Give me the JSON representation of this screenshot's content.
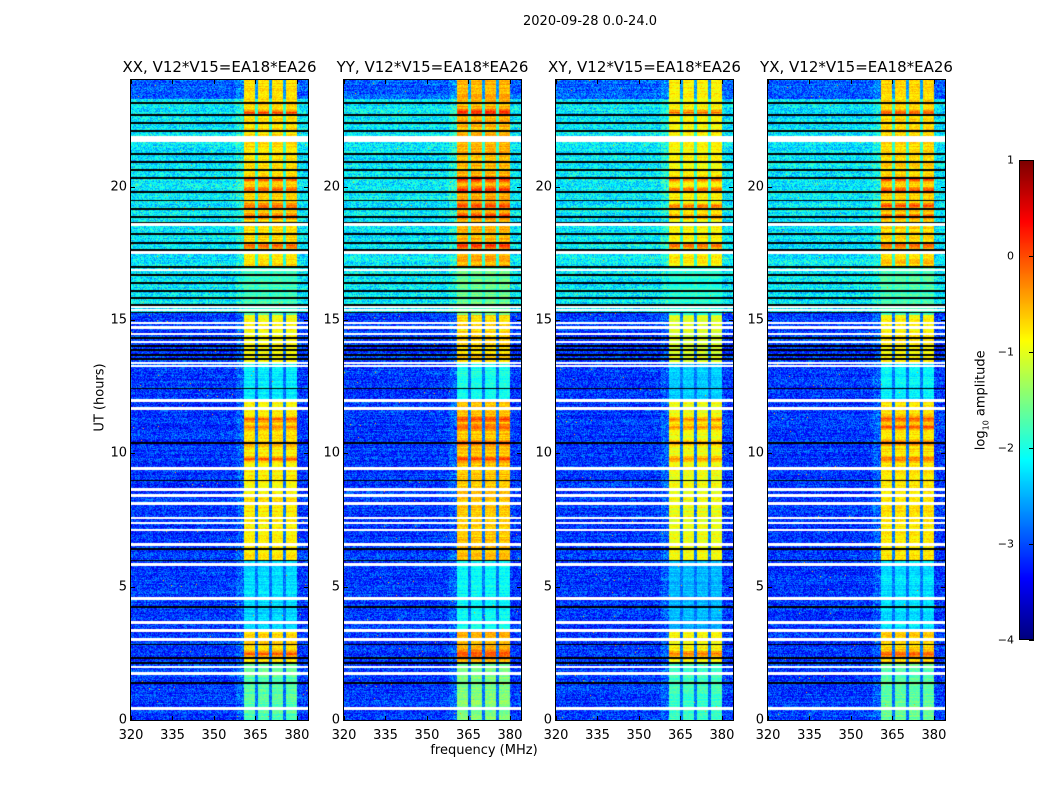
{
  "chart_data": {
    "type": "heatmap",
    "title": "2020-09-28 0.0-24.0",
    "xlabel": "frequency (MHz)",
    "ylabel": "UT (hours)",
    "xlim": [
      320,
      384
    ],
    "ylim": [
      0,
      24
    ],
    "xticks": [
      "320",
      "335",
      "350",
      "365",
      "380"
    ],
    "xtick_values": [
      320,
      335,
      350,
      365,
      380
    ],
    "yticks": [
      "0",
      "5",
      "10",
      "15",
      "20"
    ],
    "ytick_values": [
      0,
      5,
      10,
      15,
      20
    ],
    "panels": [
      {
        "title": "XX, V12*V15=EA18*EA26",
        "band_boost": 0.0
      },
      {
        "title": "YY, V12*V15=EA18*EA26",
        "band_boost": 0.2
      },
      {
        "title": "XY, V12*V15=EA18*EA26",
        "band_boost": -0.15
      },
      {
        "title": "YX, V12*V15=EA18*EA26",
        "band_boost": 0.05
      }
    ],
    "colorbar": {
      "label_prefix": "log",
      "label_sub": "10",
      "label_suffix": " amplitude",
      "range": [
        -4,
        1
      ],
      "ticks": [
        "1",
        "0",
        "−1",
        "−2",
        "−3",
        "−4"
      ],
      "tick_values": [
        1,
        0,
        -1,
        -2,
        -3,
        -4
      ],
      "colormap": "jet"
    },
    "rfi_band_mhz": [
      360.5,
      380
    ],
    "band_gaps_mhz": [
      365.2,
      370.3,
      375.3
    ],
    "background_levels": [
      {
        "from": 0,
        "to": 15.3,
        "level": -3.1
      },
      {
        "from": 15.3,
        "to": 23.3,
        "level": -2.2
      },
      {
        "from": 23.3,
        "to": 24,
        "level": -2.9
      }
    ],
    "band_levels": [
      {
        "from": 0,
        "to": 2.1,
        "level": -1.7
      },
      {
        "from": 2.1,
        "to": 3.3,
        "level": -0.7
      },
      {
        "from": 3.3,
        "to": 6.0,
        "level": -2.3
      },
      {
        "from": 6.0,
        "to": 12.0,
        "level": -0.8
      },
      {
        "from": 12.0,
        "to": 13.4,
        "level": -2.2
      },
      {
        "from": 13.4,
        "to": 15.2,
        "level": -0.9
      },
      {
        "from": 15.2,
        "to": 17.0,
        "level": -1.8
      },
      {
        "from": 17.0,
        "to": 24,
        "level": -0.7
      }
    ],
    "hot_times": [
      2.5,
      9.8,
      10.4,
      11.0,
      11.3,
      17.8,
      18.9,
      19.3,
      19.9,
      20.3,
      22.8
    ],
    "flagged_times_white": [
      0.45,
      1.76,
      2.0,
      3.04,
      3.37,
      3.67,
      4.57,
      5.85,
      6.6,
      7.15,
      7.4,
      7.6,
      8.14,
      8.44,
      8.66,
      9.45,
      11.7,
      12.0,
      13.3,
      13.4,
      14.2,
      14.5,
      14.74,
      14.9,
      15.4,
      15.5,
      16.9,
      17.55,
      18.6,
      21.75,
      21.86
    ],
    "zero_times_black": [
      1.39,
      2.14,
      2.36,
      2.85,
      4.24,
      6.0,
      6.45,
      9.0,
      10.42,
      12.45,
      13.55,
      13.7,
      13.9,
      14.05,
      14.35,
      15.3,
      15.6,
      15.85,
      16.1,
      16.4,
      16.7,
      17.0,
      17.65,
      17.9,
      18.25,
      18.65,
      18.9,
      19.2,
      19.5,
      19.8,
      20.35,
      20.65,
      20.95,
      21.25,
      22.1,
      22.4,
      22.7,
      23.17
    ]
  }
}
